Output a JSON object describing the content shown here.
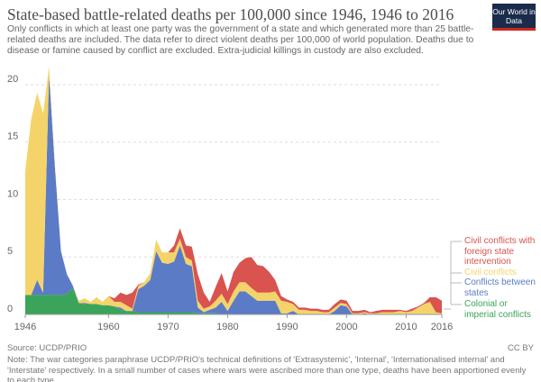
{
  "chart_data": {
    "type": "stacked_area",
    "title": "State-based battle-related deaths per 100,000 since 1946, 1946 to 2016",
    "subtitle": "Only conflicts in which at least one party was the government of a state and which generated more than 25 battle-related deaths are included. The data refer to direct violent deaths per 100,000 of world population. Deaths due to disease or famine caused by conflict are excluded. Extra-judicial killings in custody are also excluded.",
    "logo": "Our World in Data",
    "source": "Source: UCDP/PRIO",
    "license": "CC BY",
    "note": "Note: The war categories paraphrase UCDP/PRIO's technical definitions of 'Extrasystemic', 'Internal', 'Internationalised internal' and 'Interstate' respectively. In a small number of cases where wars were ascribed more than one type, deaths have been apportioned evenly to each type.",
    "x": [
      1946,
      1947,
      1948,
      1949,
      1950,
      1951,
      1952,
      1953,
      1954,
      1955,
      1956,
      1957,
      1958,
      1959,
      1960,
      1961,
      1962,
      1963,
      1964,
      1965,
      1966,
      1967,
      1968,
      1969,
      1970,
      1971,
      1972,
      1973,
      1974,
      1975,
      1976,
      1977,
      1978,
      1979,
      1980,
      1981,
      1982,
      1983,
      1984,
      1985,
      1986,
      1987,
      1988,
      1989,
      1990,
      1991,
      1992,
      1993,
      1994,
      1995,
      1996,
      1997,
      1998,
      1999,
      2000,
      2001,
      2002,
      2003,
      2004,
      2005,
      2006,
      2007,
      2008,
      2009,
      2010,
      2011,
      2012,
      2013,
      2014,
      2015,
      2016
    ],
    "xlim": [
      1946,
      2016
    ],
    "xticks": [
      1946,
      1960,
      1970,
      1980,
      1990,
      2000,
      2010,
      2016
    ],
    "ylim": [
      0,
      22
    ],
    "yticks": [
      0,
      5,
      10,
      15,
      20
    ],
    "grid": true,
    "series": [
      {
        "name": "Colonial or imperial conflicts",
        "color": "#3aa55a",
        "values": [
          1.7,
          1.7,
          1.7,
          1.7,
          1.7,
          1.7,
          1.7,
          1.8,
          2.3,
          1.0,
          0.9,
          0.9,
          0.9,
          0.8,
          0.8,
          0.7,
          0.4,
          0.3,
          0.3,
          0.2,
          0.2,
          0.2,
          0.2,
          0.2,
          0.2,
          0.2,
          0.2,
          0.2,
          0.2,
          0.1,
          0.1,
          0.1,
          0.1,
          0,
          0,
          0,
          0,
          0,
          0,
          0,
          0,
          0,
          0,
          0,
          0,
          0,
          0,
          0,
          0,
          0,
          0,
          0,
          0,
          0,
          0,
          0,
          0,
          0,
          0,
          0,
          0,
          0,
          0,
          0,
          0,
          0,
          0,
          0,
          0,
          0,
          0
        ]
      },
      {
        "name": "Conflicts between states",
        "color": "#5b7bc6",
        "values": [
          0,
          0,
          1.3,
          0.2,
          19.2,
          11,
          3.8,
          1.7,
          0.2,
          0,
          0.1,
          0,
          0,
          0,
          0,
          0,
          0.2,
          0,
          0,
          2.0,
          2.3,
          2.8,
          5.3,
          4.3,
          4.2,
          4.4,
          5.8,
          4.2,
          4.0,
          0.5,
          0.1,
          0.3,
          0.5,
          1.1,
          0.3,
          1.2,
          2.0,
          2.0,
          1.6,
          1.2,
          1.2,
          1.2,
          1.2,
          0.1,
          0.1,
          0.3,
          0,
          0,
          0,
          0,
          0,
          0,
          0.3,
          0.8,
          0.7,
          0,
          0,
          0.1,
          0,
          0,
          0,
          0,
          0,
          0,
          0,
          0,
          0,
          0,
          0,
          0,
          0
        ]
      },
      {
        "name": "Civil conflicts",
        "color": "#f4d46a",
        "values": [
          10.8,
          15.3,
          16.3,
          15.6,
          0.7,
          0.3,
          0,
          0,
          0,
          0.2,
          0.4,
          0.2,
          0.6,
          0.3,
          0.8,
          0.4,
          0.5,
          0.5,
          0.2,
          0.3,
          0.3,
          0.6,
          1,
          0.9,
          1.0,
          0.8,
          0.6,
          0.6,
          0.5,
          0.6,
          0.3,
          0.3,
          0.6,
          0.7,
          0.6,
          0.8,
          0.8,
          0.8,
          0.7,
          0.7,
          0.7,
          0.7,
          0.8,
          1.1,
          1.0,
          0.6,
          0.4,
          0.4,
          0.3,
          0.3,
          0.2,
          0.2,
          0.3,
          0.2,
          0.2,
          0.1,
          0.1,
          0.1,
          0.1,
          0.1,
          0.2,
          0.2,
          0.2,
          0.3,
          0.2,
          0.3,
          0.6,
          0.9,
          1.1,
          0.2,
          0.1
        ]
      },
      {
        "name": "Civil conflicts with foreign state intervention",
        "color": "#d9534f",
        "values": [
          0,
          0,
          0,
          0,
          0,
          0,
          0,
          0,
          0,
          0,
          0,
          0,
          0,
          0,
          0,
          0.3,
          0.8,
          0.9,
          1.4,
          0.1,
          0,
          0,
          0,
          0,
          0,
          0.6,
          0.9,
          1.0,
          1.2,
          2.3,
          1.4,
          0.4,
          1.2,
          1.8,
          1.1,
          1.7,
          1.7,
          2.1,
          2.7,
          2.4,
          2.3,
          1.8,
          1.0,
          0.4,
          0.2,
          0.2,
          0.2,
          0.2,
          0.2,
          0.2,
          0.2,
          0.2,
          0.3,
          0.3,
          0.3,
          0.2,
          0.2,
          0.2,
          0.1,
          0.2,
          0.2,
          0.2,
          0.2,
          0.1,
          0.1,
          0.2,
          0.1,
          0.1,
          0.4,
          1.3,
          1.1
        ]
      }
    ]
  }
}
